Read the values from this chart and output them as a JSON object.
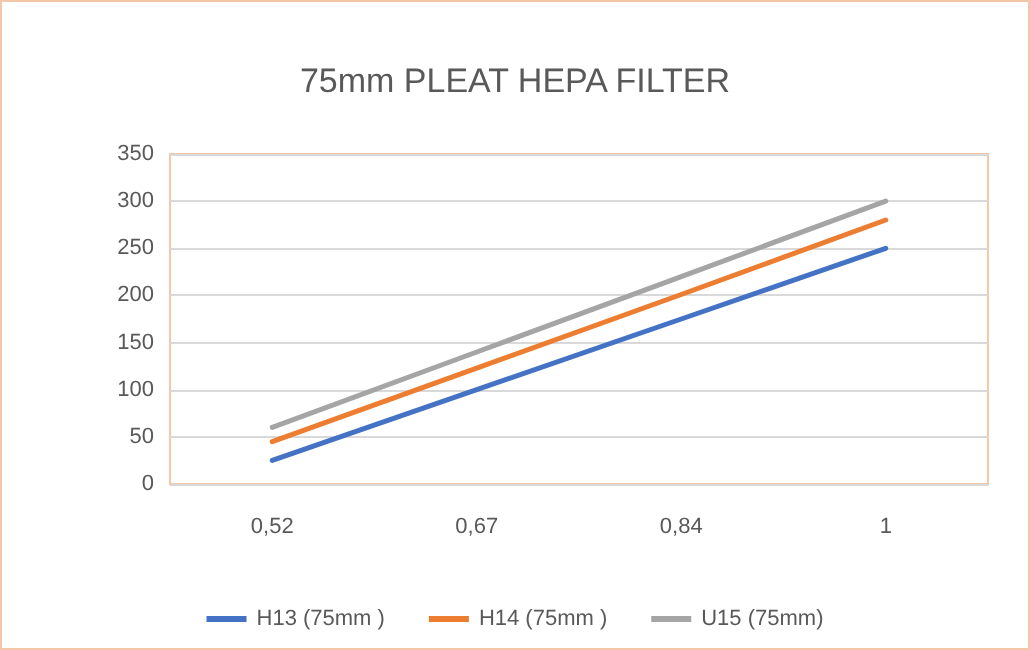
{
  "chart_data": {
    "type": "line",
    "title": "75mm PLEAT HEPA FILTER",
    "categories": [
      "0,52",
      "0,67",
      "0,84",
      "1"
    ],
    "series": [
      {
        "name": "H13 (75mm )",
        "color": "#4472c4",
        "values": [
          25,
          100,
          175,
          250
        ]
      },
      {
        "name": "H14 (75mm )",
        "color": "#ed7d31",
        "values": [
          45,
          123,
          201,
          280
        ]
      },
      {
        "name": "U15 (75mm)",
        "color": "#a5a5a5",
        "values": [
          60,
          140,
          220,
          300
        ]
      }
    ],
    "ylim": [
      0,
      350
    ],
    "yticks": [
      0,
      50,
      100,
      150,
      200,
      250,
      300,
      350
    ],
    "grid": "y",
    "legend": "bottom",
    "marker": "none",
    "line_style": "solid"
  }
}
